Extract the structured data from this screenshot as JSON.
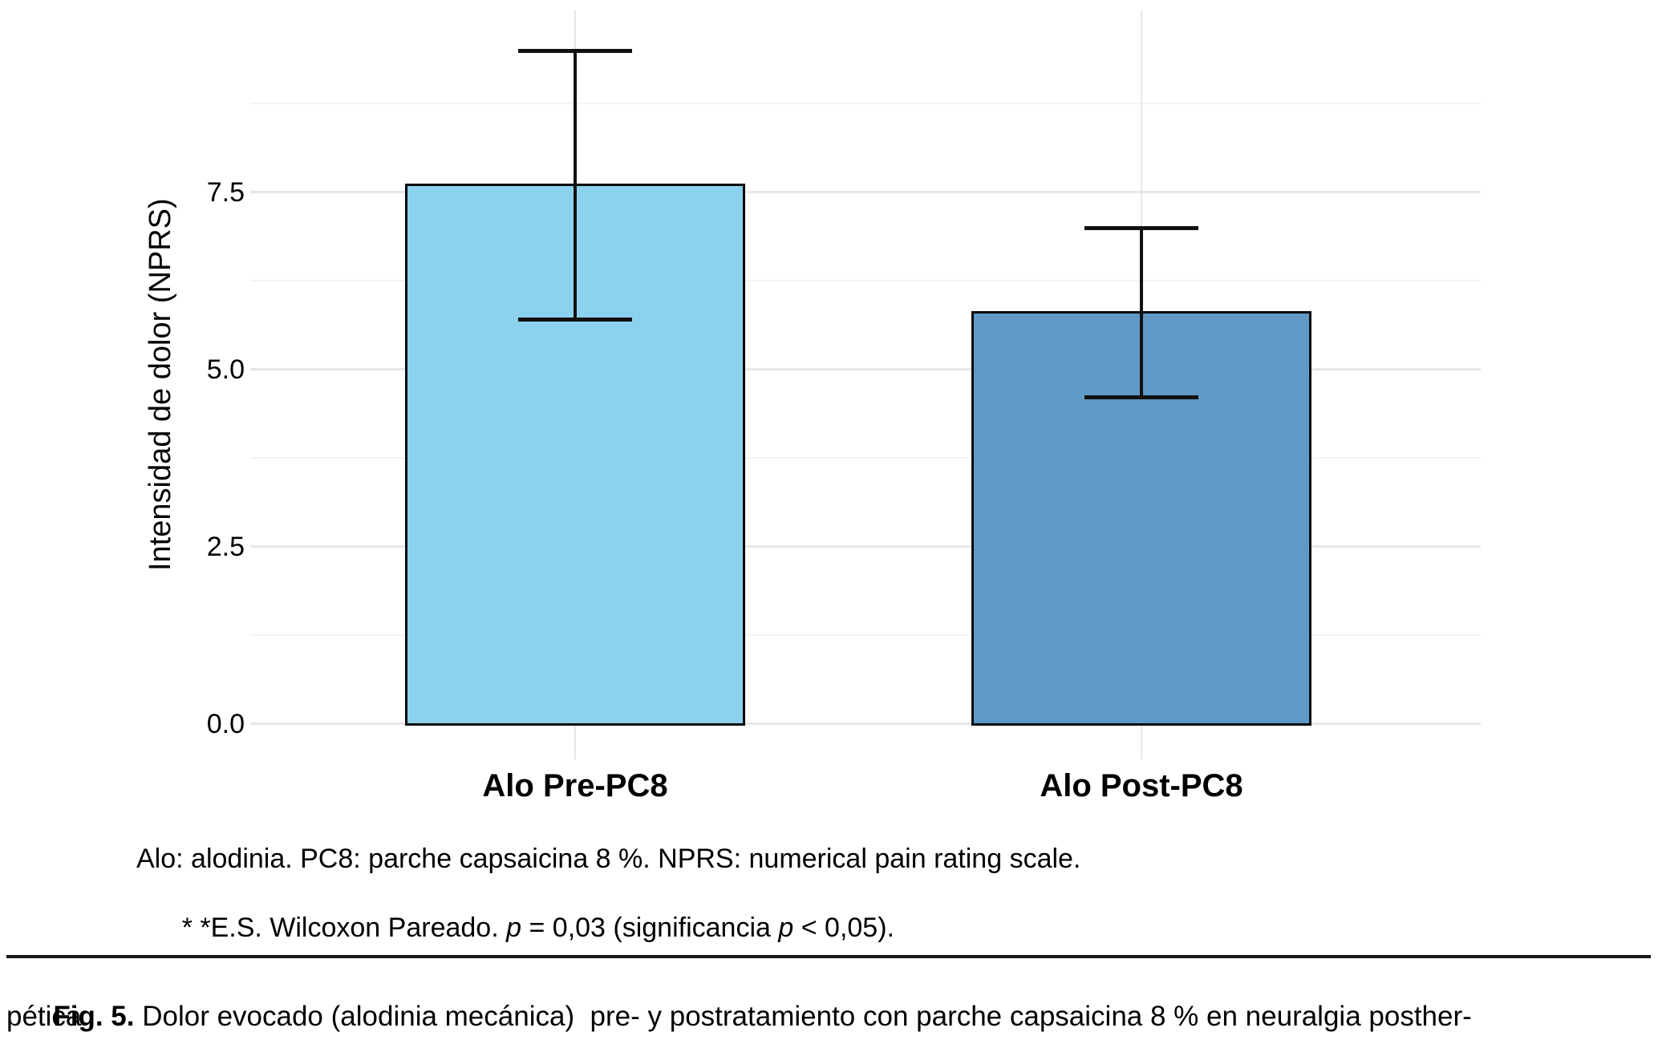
{
  "figure": {
    "footnote": {
      "line1": "Alo: alodinia. PC8: parche capsaicina 8 %. NPRS: numerical pain rating scale.",
      "line2_segments": {
        "s1": "* *E.S. Wilcoxon Pareado. ",
        "p1": "p",
        "s2": " = 0,03 (significancia ",
        "p2": "p",
        "s3": " < 0,05)."
      }
    },
    "caption": {
      "label": "Fig. 5.",
      "line1": " Dolor evocado (alodinia mecánica)  pre- y postratamiento con parche capsaicina 8 % en neuralgia posther-",
      "line2": "pética."
    }
  },
  "chart_data": {
    "type": "bar",
    "categories": [
      "Alo Pre-PC8",
      "Alo Post-PC8"
    ],
    "values": [
      7.6,
      5.8
    ],
    "error_low": [
      5.7,
      4.6
    ],
    "error_high": [
      9.5,
      7.0
    ],
    "title": "",
    "xlabel": "",
    "ylabel": "Intensidad de dolor (NPRS)",
    "ylim": [
      0,
      10.1
    ],
    "yticks": [
      0,
      2.5,
      5,
      7.5
    ],
    "ytick_labels": [
      "0.0",
      "2.5",
      "5.0",
      "7.5"
    ],
    "minor_yticks": [
      1.25,
      3.75,
      6.25,
      8.75
    ],
    "grid": "on",
    "legend": "none",
    "bar_colors": [
      "#8CD1ED",
      "#6099C6"
    ],
    "bar_edge_color": "#0A0A0A",
    "error_color": "#111111",
    "major_grid_color": "#E7E7E7",
    "minor_grid_color": "#F3F3F3"
  }
}
